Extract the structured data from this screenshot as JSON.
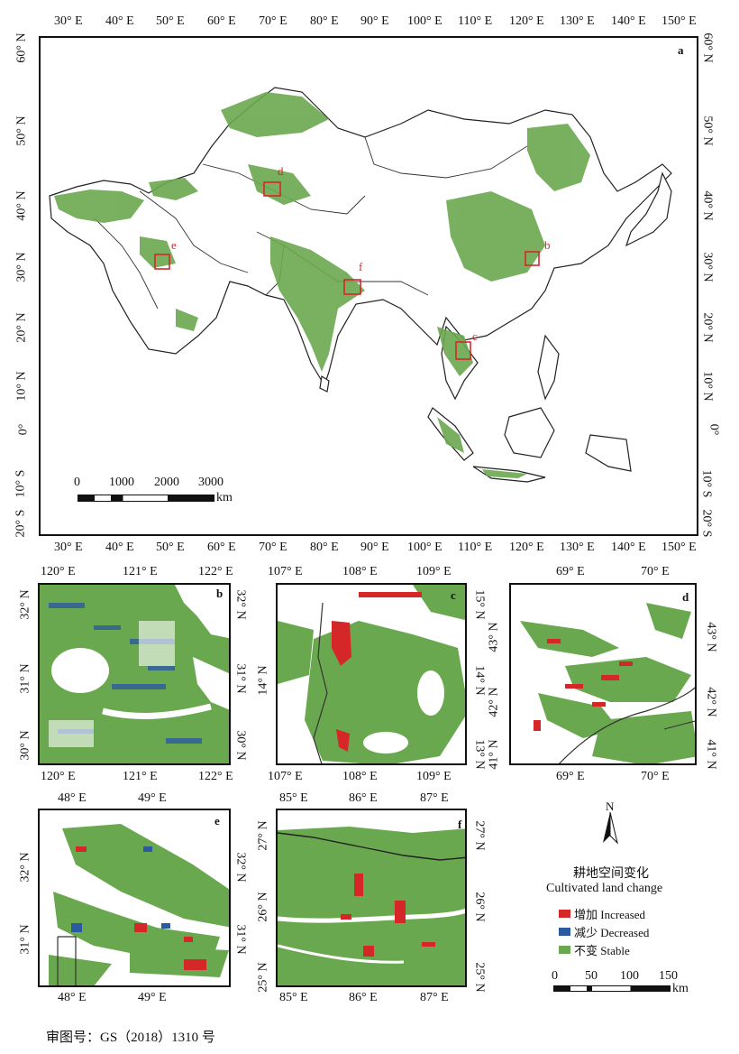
{
  "main_map": {
    "label": "a",
    "lon_ticks": [
      "30° E",
      "40° E",
      "50° E",
      "60° E",
      "70° E",
      "80° E",
      "90° E",
      "100° E",
      "110° E",
      "120° E",
      "130° E",
      "140° E",
      "150° E"
    ],
    "lat_ticks": [
      "60° N",
      "50° N",
      "40° N",
      "30° N",
      "20° N",
      "10° N",
      "0°",
      "10° S",
      "20° S"
    ],
    "study_area_labels": [
      "b",
      "c",
      "d",
      "e",
      "f"
    ],
    "scalebar": {
      "ticks": [
        "0",
        "1000",
        "2000",
        "3000"
      ],
      "unit": "km"
    }
  },
  "panel_b": {
    "label": "b",
    "lon_ticks": [
      "120° E",
      "121° E",
      "122° E"
    ],
    "lat_ticks": [
      "32° N",
      "31° N",
      "30° N"
    ]
  },
  "panel_c": {
    "label": "c",
    "lon_ticks": [
      "107° E",
      "108° E",
      "109° E"
    ],
    "lat_ticks": [
      "15° N",
      "14° N",
      "13° N"
    ]
  },
  "panel_d": {
    "label": "d",
    "lon_ticks": [
      "69° E",
      "70° E"
    ],
    "lat_ticks": [
      "43° N",
      "42° N",
      "41° N"
    ]
  },
  "panel_e": {
    "label": "e",
    "lon_ticks": [
      "48° E",
      "49° E"
    ],
    "lat_ticks": [
      "32° N",
      "31° N"
    ]
  },
  "panel_f": {
    "label": "f",
    "lon_ticks": [
      "85° E",
      "86° E",
      "87° E"
    ],
    "lat_ticks": [
      "27° N",
      "26° N",
      "25° N"
    ]
  },
  "legend": {
    "north": "N",
    "title_cn": "耕地空间变化",
    "title_en": "Cultivated land change",
    "items": [
      {
        "label": "增加 Increased",
        "color": "#d62728"
      },
      {
        "label": "减少 Decreased",
        "color": "#2c5aa0"
      },
      {
        "label": "不变 Stable",
        "color": "#6aa84f"
      }
    ],
    "scalebar": {
      "ticks": [
        "0",
        "50",
        "100",
        "150"
      ],
      "unit": "km"
    }
  },
  "footer": "审图号：GS（2018）1310 号"
}
